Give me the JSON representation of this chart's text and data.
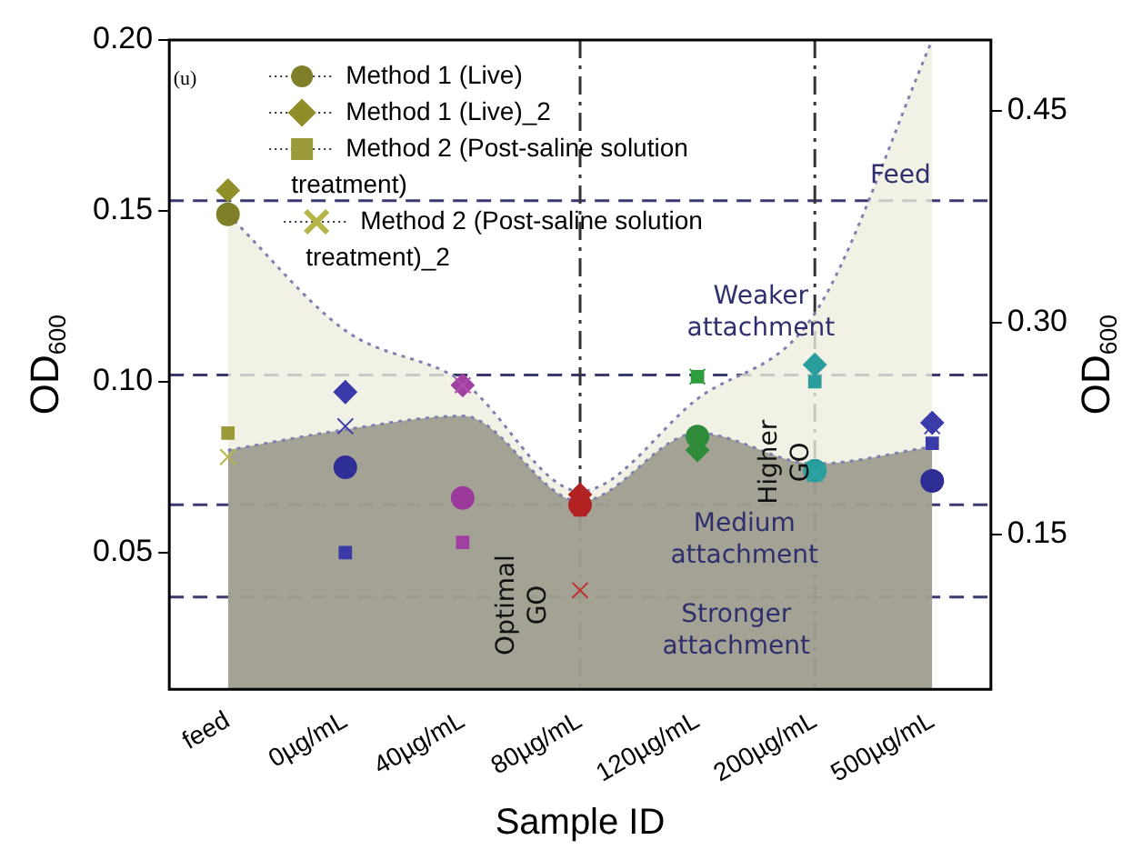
{
  "chart_data": {
    "type": "scatter",
    "xlabel": "Sample ID",
    "ylabel": "OD$_{600}$",
    "y2label": "OD$_{600}$",
    "categories": [
      "feed",
      "0µg/mL",
      "40µg/mL",
      "80µg/mL",
      "120µg/mL",
      "200µg/mL",
      "500µg/mL"
    ],
    "series": [
      {
        "type": "area",
        "color": "#efeddf",
        "line_style": "dotted",
        "values": [
          0.149,
          0.115,
          0.1,
          0.068,
          0.095,
          0.12,
          0.2
        ]
      },
      {
        "type": "area",
        "color": "#8f8f80",
        "line_style": "dotted",
        "values": [
          0.08,
          0.086,
          0.09,
          0.065,
          0.085,
          0.076,
          0.081
        ]
      },
      {
        "name": "Method 1 (Live)",
        "color": "#7f7f2a",
        "marker": "circle",
        "colors": [
          "#7f7f2a",
          "#2e2e96",
          "#9b3a9b",
          "#b22222",
          "#2e8b3a",
          "#2a9d9d",
          "#2e2e96"
        ],
        "values": [
          0.149,
          0.075,
          0.066,
          0.064,
          0.084,
          0.074,
          0.071
        ]
      },
      {
        "name": "Method 1 (Live)_2",
        "color": "#8f8f2a",
        "marker": "diamond",
        "colors": [
          "#8f8f2a",
          "#3a3aa8",
          "#a040a0",
          "#b22222",
          "#2e8b3a",
          "#2a9d9d",
          "#3a3aa8"
        ],
        "values": [
          0.156,
          0.097,
          0.099,
          0.067,
          0.08,
          0.105,
          0.088
        ]
      },
      {
        "name": "Method 2 (Post-saline solution treatment)",
        "color": "#9a9a3a",
        "marker": "square",
        "colors": [
          "#9a9a3a",
          "#3a3aa8",
          "#a040a0",
          "#b22222",
          "#2e9b3a",
          "#2a9d9d",
          "#3a3aa8"
        ],
        "values": [
          0.085,
          0.05,
          0.053,
          0.0625,
          0.1015,
          0.1,
          0.082
        ]
      },
      {
        "name": "Method 2 (Post-saline solution treatment)_2",
        "color": "#b5b54a",
        "marker": "cross",
        "colors": [
          "#b5b54a",
          "#3a3aa8",
          "#b050b0",
          "#c03030",
          "#30a040",
          "#2aa5a5",
          "#4040b0"
        ],
        "values": [
          0.078,
          0.087,
          0.099,
          0.039,
          0.1015,
          0.073,
          0.087
        ]
      }
    ],
    "ylim": [
      0.01,
      0.2
    ],
    "yticks": [
      {
        "value": 0.05,
        "label": "0.05"
      },
      {
        "value": 0.1,
        "label": "0.10"
      },
      {
        "value": 0.15,
        "label": "0.15"
      },
      {
        "value": 0.2,
        "label": "0.20"
      }
    ],
    "y2lim": [
      0.04,
      0.5
    ],
    "y2ticks": [
      {
        "value": 0.15,
        "label": "0.15"
      },
      {
        "value": 0.3,
        "label": "0.30"
      },
      {
        "value": 0.45,
        "label": "0.45"
      }
    ],
    "ref_lines": [
      {
        "axis": "y",
        "value": 0.153,
        "color": "#3a3a70",
        "line_style": "dashed"
      },
      {
        "axis": "y",
        "value": 0.102,
        "color": "#3a3a70",
        "line_style": "dashed"
      },
      {
        "axis": "y",
        "value": 0.064,
        "color": "#3a3a70",
        "line_style": "dashed"
      },
      {
        "axis": "y",
        "value": 0.037,
        "color": "#3a3a70",
        "line_style": "dashed"
      },
      {
        "axis": "x",
        "value": "80µg/mL",
        "color": "#333333",
        "line_style": "dashdot"
      },
      {
        "axis": "x",
        "value": "200µg/mL",
        "color": "#333333",
        "line_style": "dashdot"
      }
    ],
    "annotations": [
      "(u)",
      "Feed",
      "Weaker attachment",
      "Medium attachment",
      "Stronger attachment",
      "Optimal GO",
      "Higher GO"
    ],
    "legend": "top left",
    "grid": false
  }
}
